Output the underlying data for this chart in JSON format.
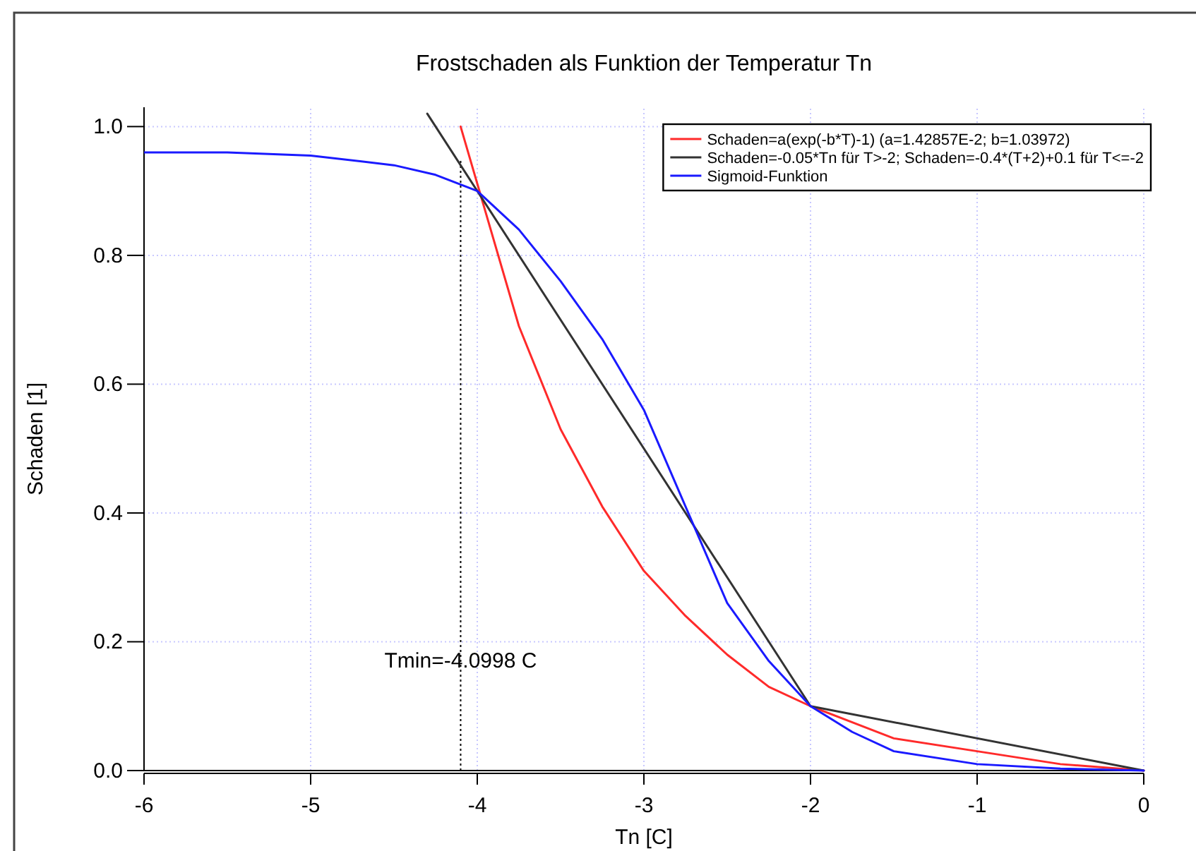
{
  "chart_data": {
    "type": "line",
    "title": "Frostschaden als Funktion der Temperatur Tn",
    "xlabel": "Tn [C]",
    "ylabel": "Schaden [1]",
    "xlim": [
      -6,
      0
    ],
    "xticks": [
      -6,
      -5,
      -4,
      -3,
      -2,
      -1,
      0
    ],
    "ylim": [
      0,
      1.03
    ],
    "yticks": [
      {
        "value": 0,
        "label": "0.0"
      },
      {
        "value": 0.2,
        "label": "0.2"
      },
      {
        "value": 0.4,
        "label": "0.4"
      },
      {
        "value": 0.6,
        "label": "0.6"
      },
      {
        "value": 0.8,
        "label": "0.8"
      },
      {
        "value": 1,
        "label": "1.0"
      }
    ],
    "grid": true,
    "legend": "top right",
    "line_style": "solid",
    "marker": "none",
    "series": [
      {
        "name": "Schaden=a(exp(-b*T)-1) (a=1.42857E-2; b=1.03972)",
        "color": "#ff2a2a",
        "x": [
          -4.1,
          -3.75,
          -3.5,
          -3.25,
          -3,
          -2.75,
          -2.5,
          -2.25,
          -2,
          -1.5,
          -1,
          -0.5,
          0
        ],
        "values": [
          1.0,
          0.69,
          0.53,
          0.41,
          0.31,
          0.24,
          0.18,
          0.13,
          0.1,
          0.05,
          0.03,
          0.01,
          0
        ]
      },
      {
        "name": "Schaden=-0.05*Tn für T>-2; Schaden=-0.4*(T+2)+0.1 für T<=-2",
        "color": "#333333",
        "x": [
          -4.3,
          -2,
          0
        ],
        "values": [
          1.02,
          0.1,
          0
        ]
      },
      {
        "name": "Sigmoid-Funktion",
        "color": "#1a1aff",
        "x": [
          -6,
          -5.5,
          -5,
          -4.5,
          -4.25,
          -4,
          -3.75,
          -3.5,
          -3.25,
          -3,
          -2.75,
          -2.5,
          -2.25,
          -2,
          -1.75,
          -1.5,
          -1,
          -0.5,
          0
        ],
        "values": [
          0.96,
          0.96,
          0.955,
          0.94,
          0.925,
          0.9,
          0.84,
          0.76,
          0.67,
          0.56,
          0.41,
          0.26,
          0.17,
          0.1,
          0.06,
          0.03,
          0.01,
          0.003,
          0
        ]
      }
    ],
    "ref_lines": [
      {
        "axis": "x",
        "value": -4.0998,
        "label": "Tmin=-4.0998 C",
        "color": "#000000",
        "line_style": "dotted"
      },
      {
        "axis": "y",
        "value": 0,
        "color": "#000000",
        "line_style": "solid"
      }
    ]
  }
}
